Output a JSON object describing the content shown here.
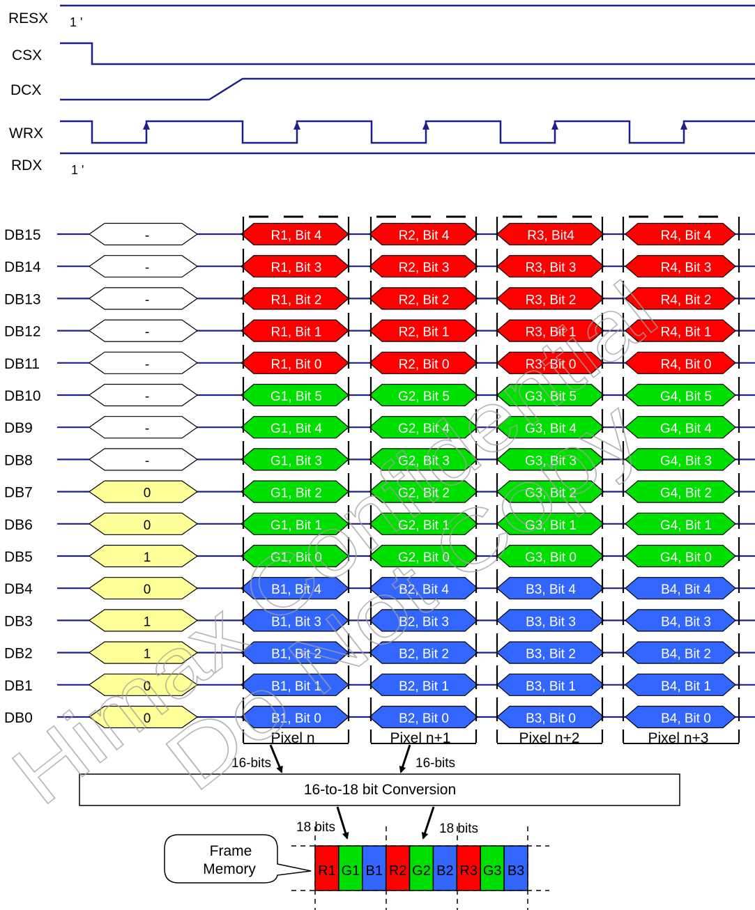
{
  "colors": {
    "line": "#1f1f8a",
    "red": "#ff0000",
    "green": "#00e000",
    "blue": "#3366ff",
    "yellow": "#ffff99",
    "white": "#ffffff",
    "black": "#000000"
  },
  "control_signals": [
    {
      "name": "RESX",
      "note": "1 '"
    },
    {
      "name": "CSX",
      "note": ""
    },
    {
      "name": "DCX",
      "note": ""
    },
    {
      "name": "WRX",
      "note": ""
    },
    {
      "name": "RDX",
      "note": "1 '"
    }
  ],
  "data_rows": [
    {
      "label": "DB15",
      "command": "-",
      "pixels": [
        "R1, Bit 4",
        "R2, Bit 4",
        "R3, Bit4",
        "R4, Bit 4"
      ]
    },
    {
      "label": "DB14",
      "command": "-",
      "pixels": [
        "R1, Bit 3",
        "R2, Bit 3",
        "R3, Bit 3",
        "R4, Bit 3"
      ]
    },
    {
      "label": "DB13",
      "command": "-",
      "pixels": [
        "R1, Bit 2",
        "R2, Bit 2",
        "R3, Bit 2",
        "R4, Bit 2"
      ]
    },
    {
      "label": "DB12",
      "command": "-",
      "pixels": [
        "R1, Bit 1",
        "R2, Bit 1",
        "R3, Bit 1",
        "R4, Bit 1"
      ]
    },
    {
      "label": "DB11",
      "command": "-",
      "pixels": [
        "R1, Bit 0",
        "R2, Bit 0",
        "R3, Bit 0",
        "R4, Bit 0"
      ]
    },
    {
      "label": "DB10",
      "command": "-",
      "pixels": [
        "G1, Bit 5",
        "G2, Bit 5",
        "G3, Bit 5",
        "G4, Bit 5"
      ]
    },
    {
      "label": "DB9",
      "command": "-",
      "pixels": [
        "G1, Bit 4",
        "G2, Bit 4",
        "G3, Bit 4",
        "G4, Bit 4"
      ]
    },
    {
      "label": "DB8",
      "command": "-",
      "pixels": [
        "G1, Bit 3",
        "G2, Bit 3",
        "G3, Bit 3",
        "G4, Bit 3"
      ]
    },
    {
      "label": "DB7",
      "command": "0",
      "pixels": [
        "G1, Bit 2",
        "G2, Bit 2",
        "G3, Bit 2",
        "G4, Bit 2"
      ]
    },
    {
      "label": "DB6",
      "command": "0",
      "pixels": [
        "G1, Bit 1",
        "G2, Bit 1",
        "G3, Bit 1",
        "G4, Bit 1"
      ]
    },
    {
      "label": "DB5",
      "command": "1",
      "pixels": [
        "G1, Bit 0",
        "G2, Bit 0",
        "G3, Bit 0",
        "G4, Bit 0"
      ]
    },
    {
      "label": "DB4",
      "command": "0",
      "pixels": [
        "B1, Bit 4",
        "B2, Bit 4",
        "B3, Bit 4",
        "B4, Bit 4"
      ]
    },
    {
      "label": "DB3",
      "command": "1",
      "pixels": [
        "B1, Bit 3",
        "B2, Bit 3",
        "B3, Bit 3",
        "B4, Bit 3"
      ]
    },
    {
      "label": "DB2",
      "command": "1",
      "pixels": [
        "B1, Bit 2",
        "B2, Bit 2",
        "B3, Bit 2",
        "B4, Bit 2"
      ]
    },
    {
      "label": "DB1",
      "command": "0",
      "pixels": [
        "B1, Bit 1",
        "B2, Bit 1",
        "B3, Bit 1",
        "B4, Bit 1"
      ]
    },
    {
      "label": "DB0",
      "command": "0",
      "pixels": [
        "B1, Bit 0",
        "B2, Bit 0",
        "B3, Bit 0",
        "B4, Bit 0"
      ]
    }
  ],
  "pixel_labels": [
    "Pixel n",
    "Pixel n+1",
    "Pixel n+2",
    "Pixel n+3"
  ],
  "bits_16_label": "16-bits",
  "bits_18_label": "18 bits",
  "conversion_label": "16-to-18 bit Conversion",
  "frame_memory": {
    "line1": "Frame",
    "line2": "Memory"
  },
  "memory_cells": [
    "R1",
    "G1",
    "B1",
    "R2",
    "G2",
    "B2",
    "R3",
    "G3",
    "B3"
  ],
  "watermark": {
    "line1": "Himax Confidential",
    "line2": "Do Not Copy"
  }
}
